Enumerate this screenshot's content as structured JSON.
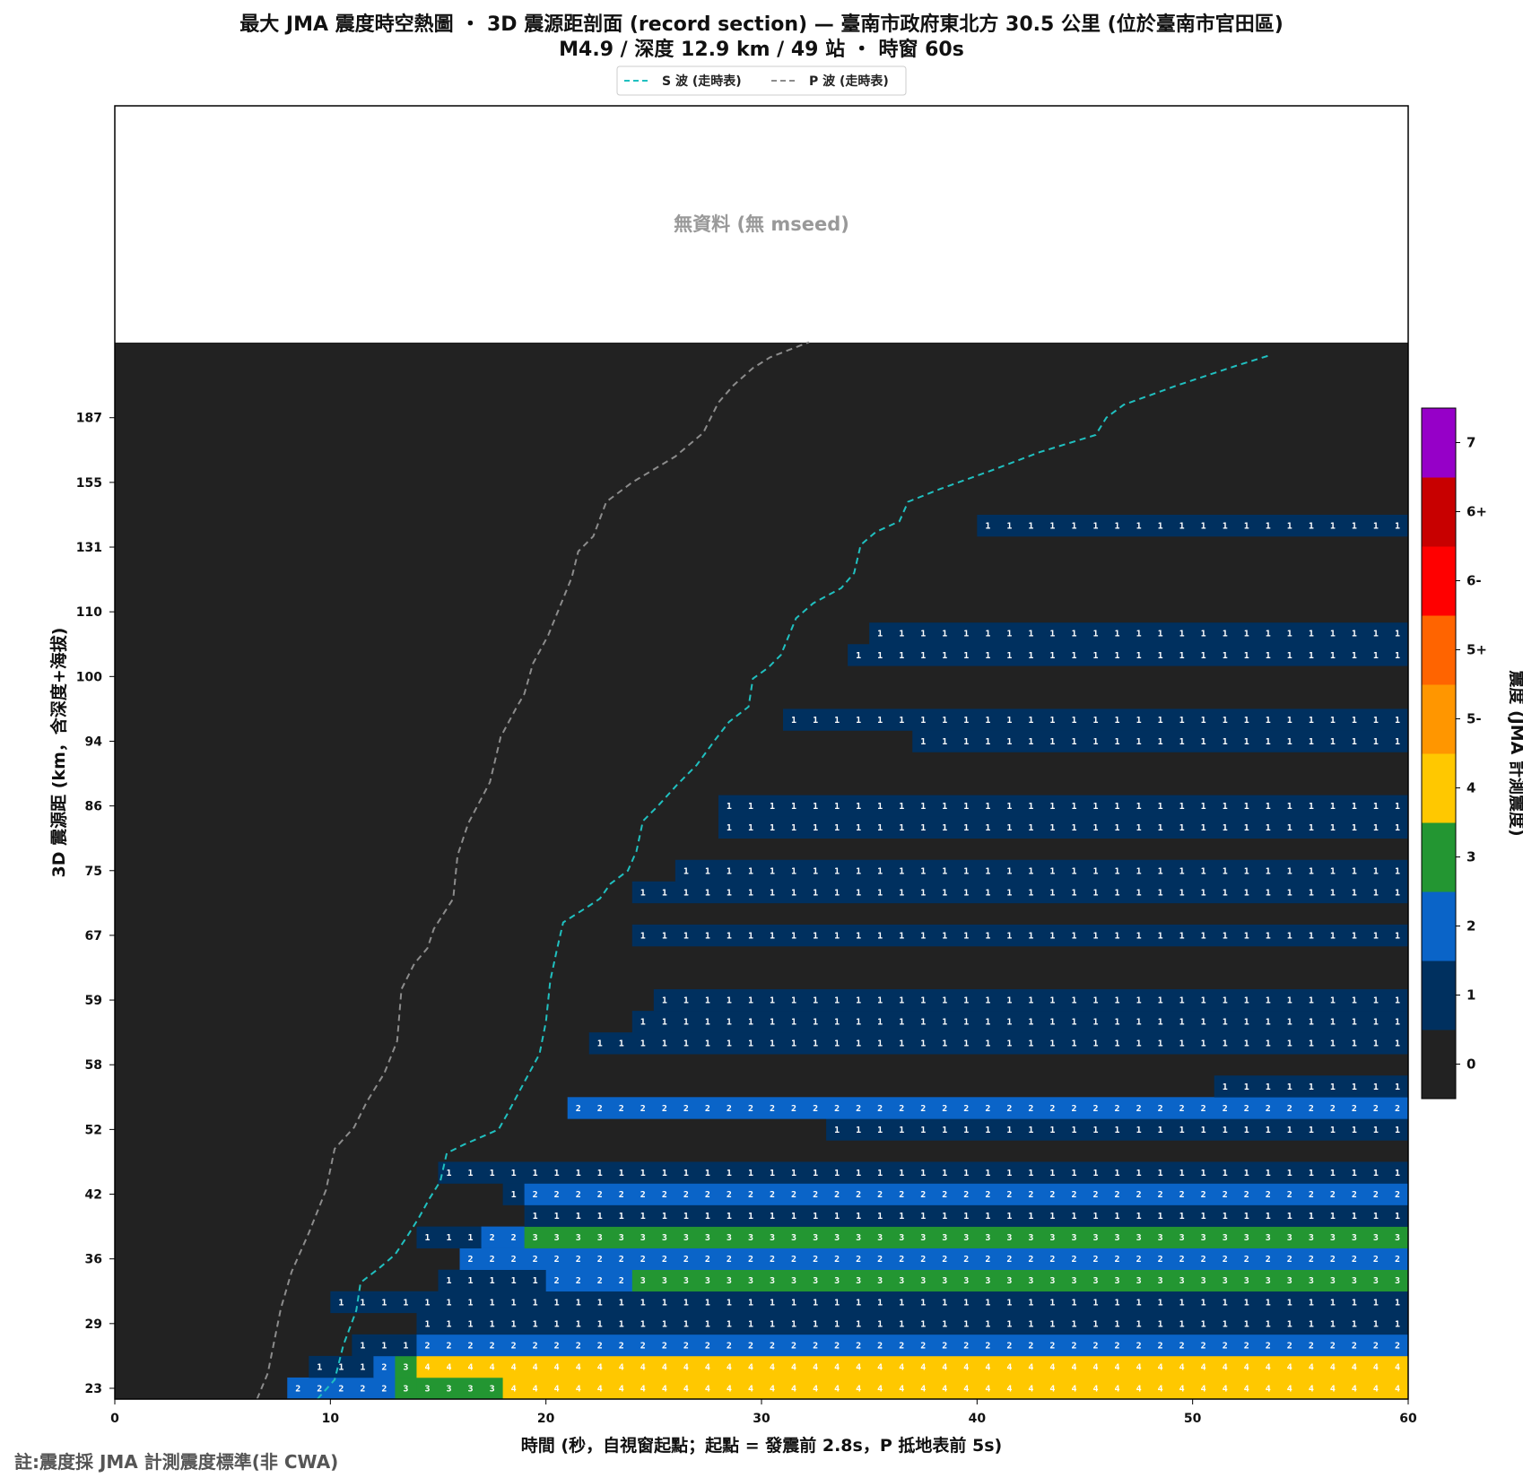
{
  "chart_data": {
    "type": "heatmap",
    "title_line1": "最大 JMA 震度時空熱圖 ・ 3D 震源距剖面 (record section) — 臺南市政府東北方  30.5  公里 (位於臺南市官田區)",
    "title_line2": "M4.9 / 深度 12.9 km / 49 站 ・ 時窗 60s",
    "xlabel": "時間 (秒，自視窗起點；起點 = 發震前 2.8s，P 抵地表前 5s)",
    "ylabel": "3D 震源距 (km，含深度+海拔)",
    "xlim": [
      0,
      60
    ],
    "x_ticks": [
      "0",
      "10",
      "20",
      "30",
      "40",
      "50",
      "60"
    ],
    "y_tick_labels": [
      "23",
      "29",
      "36",
      "42",
      "52",
      "58",
      "59",
      "67",
      "75",
      "86",
      "94",
      "100",
      "110",
      "131",
      "155",
      "187"
    ],
    "legend": {
      "placement": "top-center",
      "entries": [
        {
          "label": "S 波 (走時表)",
          "color": "#20c0c0"
        },
        {
          "label": "P 波 (走時表)",
          "color": "#8c8c8c"
        }
      ]
    },
    "no_data_label": "無資料 (無 mseed)",
    "colorbar": {
      "label": "震度 (JMA 計測震度)",
      "levels": [
        {
          "label": "0",
          "color": "#222222"
        },
        {
          "label": "1",
          "color": "#00305f"
        },
        {
          "label": "2",
          "color": "#0a64c8"
        },
        {
          "label": "3",
          "color": "#239632"
        },
        {
          "label": "4",
          "color": "#ffc800"
        },
        {
          "label": "5-",
          "color": "#ff9600"
        },
        {
          "label": "5+",
          "color": "#ff6400"
        },
        {
          "label": "6-",
          "color": "#ff0000"
        },
        {
          "label": "6+",
          "color": "#c80000"
        },
        {
          "label": "7",
          "color": "#9600c8"
        }
      ]
    },
    "rows": [
      {
        "r": 0,
        "segments": [
          [
            8,
            10,
            2
          ],
          [
            10,
            13,
            2
          ],
          [
            13,
            14,
            3
          ],
          [
            14,
            18,
            3
          ],
          [
            18,
            60,
            4
          ]
        ]
      },
      {
        "r": 1,
        "segments": [
          [
            9,
            12,
            1
          ],
          [
            12,
            13,
            2
          ],
          [
            13,
            14,
            3
          ],
          [
            14,
            60,
            4
          ]
        ]
      },
      {
        "r": 2,
        "segments": [
          [
            11,
            14,
            1
          ],
          [
            14,
            60,
            2
          ]
        ]
      },
      {
        "r": 3,
        "segments": [
          [
            14,
            60,
            1
          ]
        ]
      },
      {
        "r": 4,
        "segments": [
          [
            10,
            60,
            1
          ]
        ]
      },
      {
        "r": 5,
        "segments": [
          [
            15,
            20,
            1
          ],
          [
            20,
            24,
            2
          ],
          [
            24,
            60,
            3
          ]
        ]
      },
      {
        "r": 6,
        "segments": [
          [
            16,
            60,
            2
          ]
        ]
      },
      {
        "r": 7,
        "segments": [
          [
            14,
            17,
            1
          ],
          [
            17,
            19,
            2
          ],
          [
            19,
            60,
            3
          ]
        ]
      },
      {
        "r": 8,
        "segments": [
          [
            19,
            60,
            1
          ]
        ]
      },
      {
        "r": 9,
        "segments": [
          [
            18,
            19,
            1
          ],
          [
            19,
            60,
            2
          ]
        ]
      },
      {
        "r": 10,
        "segments": [
          [
            15,
            60,
            1
          ]
        ]
      },
      {
        "r": 12,
        "segments": [
          [
            33,
            60,
            1
          ]
        ]
      },
      {
        "r": 13,
        "segments": [
          [
            21,
            60,
            2
          ]
        ]
      },
      {
        "r": 14,
        "segments": [
          [
            51,
            60,
            1
          ]
        ]
      },
      {
        "r": 16,
        "segments": [
          [
            22,
            60,
            1
          ]
        ]
      },
      {
        "r": 17,
        "segments": [
          [
            24,
            60,
            1
          ]
        ]
      },
      {
        "r": 18,
        "segments": [
          [
            25,
            60,
            1
          ]
        ]
      },
      {
        "r": 21,
        "segments": [
          [
            24,
            60,
            1
          ]
        ]
      },
      {
        "r": 23,
        "segments": [
          [
            24,
            60,
            1
          ]
        ]
      },
      {
        "r": 24,
        "segments": [
          [
            26,
            60,
            1
          ]
        ]
      },
      {
        "r": 26,
        "segments": [
          [
            28,
            60,
            1
          ]
        ]
      },
      {
        "r": 27,
        "segments": [
          [
            28,
            60,
            1
          ]
        ]
      },
      {
        "r": 30,
        "segments": [
          [
            37,
            60,
            1
          ]
        ]
      },
      {
        "r": 31,
        "segments": [
          [
            31,
            60,
            1
          ]
        ]
      },
      {
        "r": 34,
        "segments": [
          [
            34,
            60,
            1
          ]
        ]
      },
      {
        "r": 35,
        "segments": [
          [
            35,
            60,
            1
          ]
        ]
      },
      {
        "r": 40,
        "segments": [
          [
            40,
            60,
            1
          ]
        ]
      }
    ],
    "p_wave_curve": [
      [
        6.6,
        -0.5
      ],
      [
        7.1,
        0.7
      ],
      [
        7.7,
        3.7
      ],
      [
        8.2,
        5.4
      ],
      [
        9.0,
        7.2
      ],
      [
        9.8,
        9.2
      ],
      [
        10.2,
        11.1
      ],
      [
        11.1,
        12.1
      ],
      [
        11.7,
        13.3
      ],
      [
        12.5,
        14.6
      ],
      [
        13.1,
        16.1
      ],
      [
        13.3,
        18.5
      ],
      [
        13.9,
        19.7
      ],
      [
        14.5,
        20.4
      ],
      [
        14.8,
        21.3
      ],
      [
        15.7,
        22.7
      ],
      [
        15.9,
        24.7
      ],
      [
        16.4,
        26.2
      ],
      [
        17.4,
        28.1
      ],
      [
        17.9,
        30.2
      ],
      [
        18.6,
        31.5
      ],
      [
        19.0,
        32.2
      ],
      [
        19.4,
        33.6
      ],
      [
        20.1,
        34.9
      ],
      [
        21.2,
        37.6
      ],
      [
        21.5,
        38.8
      ],
      [
        22.2,
        39.5
      ],
      [
        22.8,
        41.1
      ],
      [
        24.0,
        42.0
      ],
      [
        26.0,
        43.2
      ],
      [
        27.3,
        44.3
      ],
      [
        28.0,
        45.7
      ],
      [
        28.7,
        46.5
      ],
      [
        29.6,
        47.3
      ],
      [
        30.4,
        47.8
      ],
      [
        32.2,
        48.5
      ]
    ],
    "s_wave_curve": [
      [
        9.4,
        -0.5
      ],
      [
        10.2,
        0.4
      ],
      [
        10.6,
        2.0
      ],
      [
        11.2,
        3.6
      ],
      [
        11.4,
        4.9
      ],
      [
        12.3,
        5.6
      ],
      [
        13.0,
        6.2
      ],
      [
        13.6,
        7.1
      ],
      [
        14.1,
        7.9
      ],
      [
        14.6,
        8.8
      ],
      [
        15.1,
        9.6
      ],
      [
        15.4,
        10.9
      ],
      [
        16.2,
        11.3
      ],
      [
        17.8,
        12.0
      ],
      [
        18.2,
        12.7
      ],
      [
        19.0,
        14.2
      ],
      [
        19.7,
        15.5
      ],
      [
        20.0,
        17.0
      ],
      [
        20.2,
        18.9
      ],
      [
        20.5,
        20.3
      ],
      [
        20.8,
        21.6
      ],
      [
        21.9,
        22.3
      ],
      [
        22.5,
        22.7
      ],
      [
        23.0,
        23.4
      ],
      [
        23.8,
        24.0
      ],
      [
        24.2,
        24.9
      ],
      [
        24.5,
        26.3
      ],
      [
        25.2,
        27.0
      ],
      [
        26.1,
        28.0
      ],
      [
        27.0,
        28.9
      ],
      [
        27.8,
        30.0
      ],
      [
        28.5,
        30.9
      ],
      [
        29.4,
        31.6
      ],
      [
        29.6,
        32.9
      ],
      [
        30.3,
        33.4
      ],
      [
        30.9,
        34.0
      ],
      [
        31.6,
        35.7
      ],
      [
        32.4,
        36.4
      ],
      [
        33.7,
        37.1
      ],
      [
        34.3,
        37.8
      ],
      [
        34.6,
        39.1
      ],
      [
        35.3,
        39.7
      ],
      [
        36.4,
        40.2
      ],
      [
        36.8,
        41.1
      ],
      [
        38.3,
        41.7
      ],
      [
        40.8,
        42.6
      ],
      [
        42.9,
        43.4
      ],
      [
        45.5,
        44.2
      ],
      [
        46.0,
        45.0
      ],
      [
        46.8,
        45.6
      ],
      [
        49.3,
        46.5
      ],
      [
        52.0,
        47.4
      ],
      [
        53.6,
        47.9
      ]
    ]
  },
  "footnote": "註:震度採 JMA 計測震度標準(非 CWA)"
}
